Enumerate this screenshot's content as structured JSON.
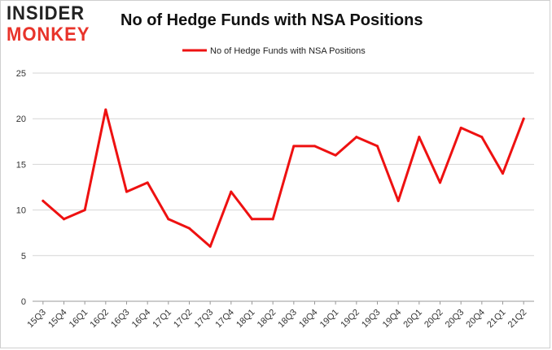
{
  "logo": {
    "line1": "INSIDER",
    "line2": "MONKEY"
  },
  "chart_data": {
    "type": "line",
    "title": "No of Hedge Funds with NSA Positions",
    "categories": [
      "15Q3",
      "15Q4",
      "16Q1",
      "16Q2",
      "16Q3",
      "16Q4",
      "17Q1",
      "17Q2",
      "17Q3",
      "17Q4",
      "18Q1",
      "18Q2",
      "18Q3",
      "18Q4",
      "19Q1",
      "19Q2",
      "19Q3",
      "19Q4",
      "20Q1",
      "20Q2",
      "20Q3",
      "20Q4",
      "21Q1",
      "21Q2"
    ],
    "series": [
      {
        "name": "No of Hedge Funds with NSA Positions",
        "color": "#ee1111",
        "values": [
          11,
          9,
          10,
          21,
          12,
          13,
          9,
          8,
          6,
          12,
          9,
          9,
          17,
          17,
          16,
          18,
          17,
          11,
          18,
          13,
          19,
          18,
          14,
          20
        ]
      }
    ],
    "xlabel": "",
    "ylabel": "",
    "ylim": [
      0,
      25
    ],
    "yticks": [
      0,
      5,
      10,
      15,
      20,
      25
    ],
    "grid": true,
    "legend": "top-center"
  }
}
